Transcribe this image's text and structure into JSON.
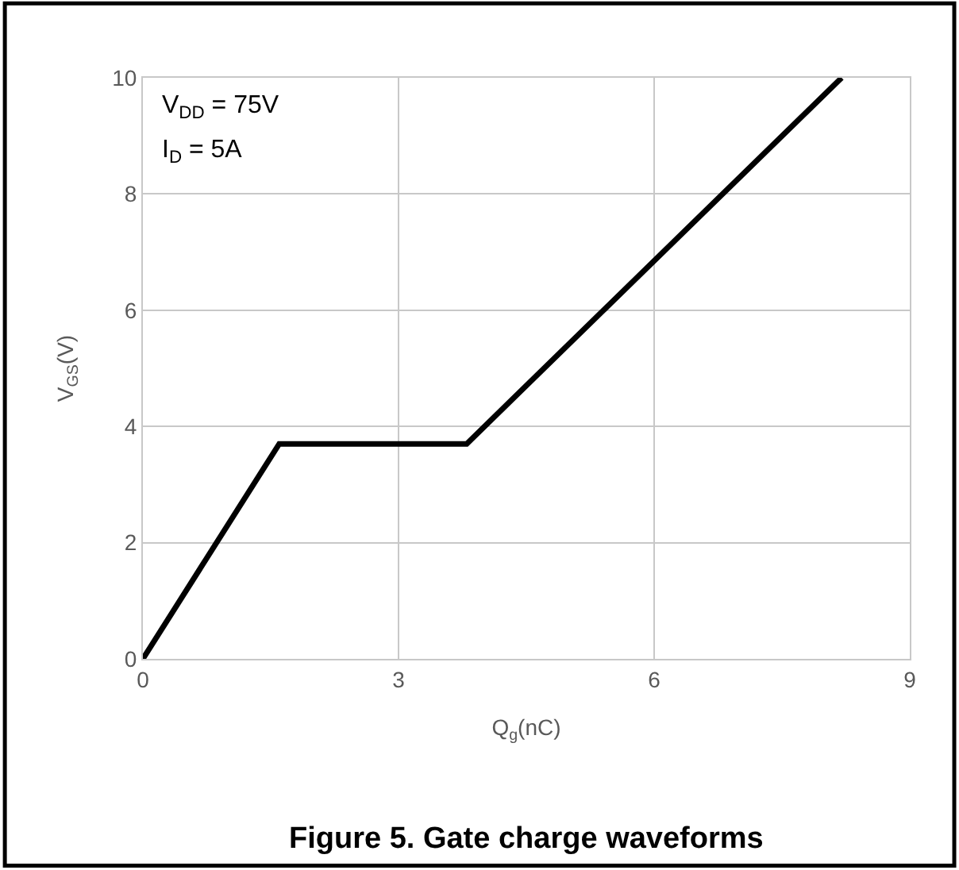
{
  "chart_data": {
    "type": "line",
    "title": "Figure 5. Gate charge waveforms",
    "xlabel": "Q$_{g}$(nC)",
    "ylabel": "V$_{GS}$(V)",
    "x": [
      0,
      1.6,
      3.8,
      8.2
    ],
    "series": [
      {
        "color": "#000000",
        "values": [
          0,
          3.7,
          3.7,
          10
        ]
      }
    ],
    "annotations": [
      "V$_{DD}$ = 75V",
      "I$_{D}$ = 5A"
    ],
    "xlim": [
      0,
      9
    ],
    "xticks": [
      0,
      3,
      6,
      9
    ],
    "ylim": [
      0,
      10
    ],
    "yticks": [
      0,
      2,
      4,
      6,
      8,
      10
    ],
    "grid": true,
    "marker": "none",
    "line_style": "solid"
  }
}
